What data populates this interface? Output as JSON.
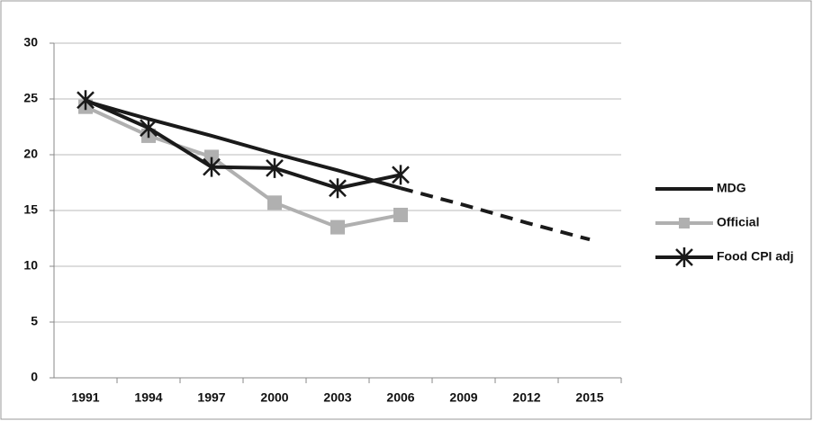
{
  "chart_data": {
    "type": "line",
    "categories": [
      "1991",
      "1994",
      "1997",
      "2000",
      "2003",
      "2006",
      "2009",
      "2012",
      "2015"
    ],
    "series": [
      {
        "name": "MDG",
        "color": "#1a1a1a",
        "marker": "none",
        "dash_from": "2006",
        "values": [
          24.8,
          23.2,
          21.7,
          20.1,
          18.6,
          17.0,
          15.5,
          13.9,
          12.4
        ]
      },
      {
        "name": "Official",
        "color": "#b0b0b0",
        "marker": "square",
        "values": [
          24.3,
          21.7,
          19.8,
          15.7,
          13.5,
          14.6,
          null,
          null,
          null
        ]
      },
      {
        "name": "Food CPI adj",
        "color": "#1a1a1a",
        "marker": "star",
        "values": [
          24.9,
          22.4,
          18.9,
          18.8,
          17.0,
          18.2,
          null,
          null,
          null
        ]
      }
    ],
    "ylim": [
      0,
      30
    ],
    "yticks": [
      0,
      5,
      10,
      15,
      20,
      25,
      30
    ],
    "grid": true,
    "legend": "right"
  }
}
